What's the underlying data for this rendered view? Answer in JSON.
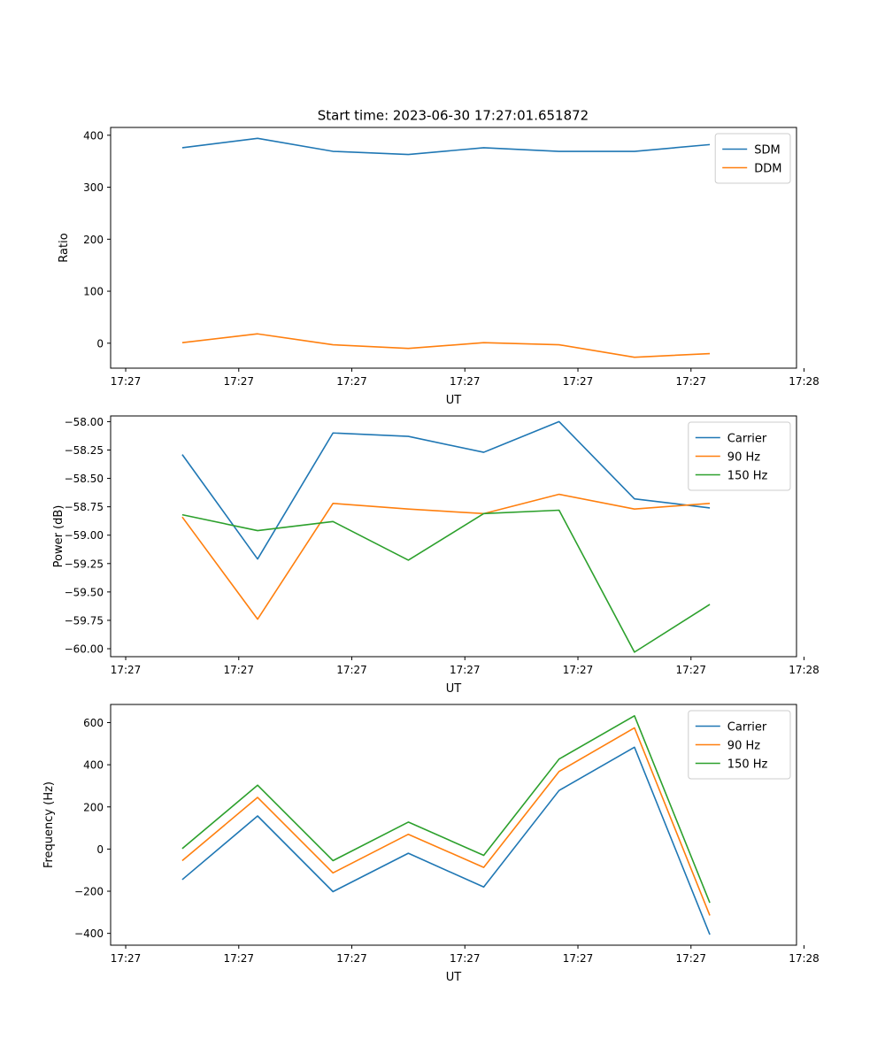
{
  "figure": {
    "title": "Start time: 2023-06-30 17:27:01.651872"
  },
  "chart_data": [
    {
      "type": "line",
      "title": "Start time: 2023-06-30 17:27:01.651872",
      "xlabel": "UT",
      "ylabel": "Ratio",
      "x": [
        1,
        2,
        3,
        4,
        5,
        6,
        7,
        8
      ],
      "xlim": [
        0.05,
        9.15
      ],
      "x_ticks": [
        0.25,
        1.75,
        3.25,
        4.75,
        6.25,
        7.75,
        9.25
      ],
      "x_tick_labels": [
        "17:27",
        "17:27",
        "17:27",
        "17:27",
        "17:27",
        "17:27",
        "17:28"
      ],
      "ylim": [
        -48,
        415
      ],
      "y_ticks": [
        0,
        100,
        200,
        300,
        400
      ],
      "y_tick_labels": [
        "0",
        "100",
        "200",
        "300",
        "400"
      ],
      "legend_position": "upper right",
      "grid": false,
      "series": [
        {
          "name": "SDM",
          "color": "#1f77b4",
          "values": [
            376,
            394,
            369,
            363,
            376,
            369,
            369,
            382
          ]
        },
        {
          "name": "DDM",
          "color": "#ff7f0e",
          "values": [
            1,
            18,
            -3,
            -10,
            1,
            -3,
            -27,
            -20
          ]
        }
      ]
    },
    {
      "type": "line",
      "title": "",
      "xlabel": "UT",
      "ylabel": "Power (dB)",
      "x": [
        1,
        2,
        3,
        4,
        5,
        6,
        7,
        8
      ],
      "xlim": [
        0.05,
        9.15
      ],
      "x_ticks": [
        0.25,
        1.75,
        3.25,
        4.75,
        6.25,
        7.75,
        9.25
      ],
      "x_tick_labels": [
        "17:27",
        "17:27",
        "17:27",
        "17:27",
        "17:27",
        "17:27",
        "17:28"
      ],
      "ylim": [
        -60.07,
        -57.95
      ],
      "y_ticks": [
        -58.0,
        -58.25,
        -58.5,
        -58.75,
        -59.0,
        -59.25,
        -59.5,
        -59.75,
        -60.0
      ],
      "y_tick_labels": [
        "−58.00",
        "−58.25",
        "−58.50",
        "−58.75",
        "−59.00",
        "−59.25",
        "−59.50",
        "−59.75",
        "−60.00"
      ],
      "legend_position": "upper right",
      "grid": false,
      "series": [
        {
          "name": "Carrier",
          "color": "#1f77b4",
          "values": [
            -58.29,
            -59.21,
            -58.1,
            -58.13,
            -58.27,
            -58.0,
            -58.68,
            -58.76
          ]
        },
        {
          "name": "90 Hz",
          "color": "#ff7f0e",
          "values": [
            -58.84,
            -59.74,
            -58.72,
            -58.77,
            -58.81,
            -58.64,
            -58.77,
            -58.72
          ]
        },
        {
          "name": "150 Hz",
          "color": "#2ca02c",
          "values": [
            -58.82,
            -58.96,
            -58.88,
            -59.22,
            -58.81,
            -58.78,
            -60.03,
            -59.61
          ]
        }
      ]
    },
    {
      "type": "line",
      "title": "",
      "xlabel": "UT",
      "ylabel": "Frequency (Hz)",
      "x": [
        1,
        2,
        3,
        4,
        5,
        6,
        7,
        8
      ],
      "xlim": [
        0.05,
        9.15
      ],
      "x_ticks": [
        0.25,
        1.75,
        3.25,
        4.75,
        6.25,
        7.75,
        9.25
      ],
      "x_tick_labels": [
        "17:27",
        "17:27",
        "17:27",
        "17:27",
        "17:27",
        "17:27",
        "17:28"
      ],
      "ylim": [
        -456,
        686
      ],
      "y_ticks": [
        -400,
        -200,
        0,
        200,
        400,
        600
      ],
      "y_tick_labels": [
        "−400",
        "−200",
        "0",
        "200",
        "400",
        "600"
      ],
      "legend_position": "upper right",
      "grid": false,
      "series": [
        {
          "name": "Carrier",
          "color": "#1f77b4",
          "values": [
            -145,
            157,
            -202,
            -20,
            -180,
            278,
            483,
            -406
          ]
        },
        {
          "name": "90 Hz",
          "color": "#ff7f0e",
          "values": [
            -55,
            245,
            -113,
            70,
            -87,
            368,
            575,
            -315
          ]
        },
        {
          "name": "150 Hz",
          "color": "#2ca02c",
          "values": [
            2,
            303,
            -55,
            128,
            -30,
            427,
            632,
            -255
          ]
        }
      ]
    }
  ]
}
